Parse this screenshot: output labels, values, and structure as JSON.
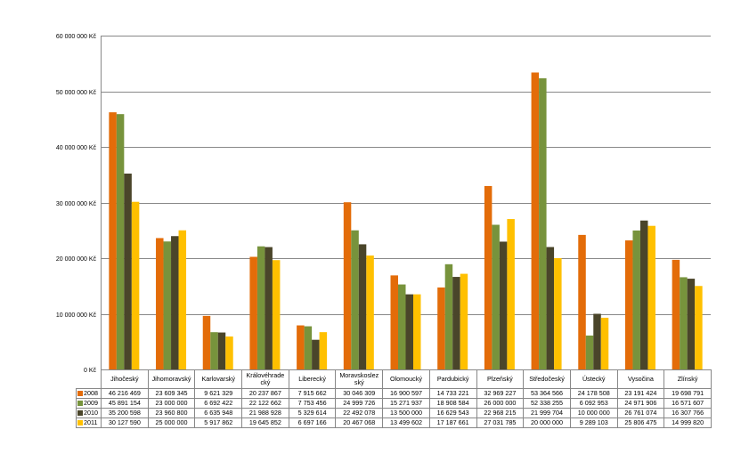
{
  "chart_data": {
    "type": "bar",
    "title": "",
    "xlabel": "",
    "ylabel": "",
    "ylim": [
      0,
      60000000
    ],
    "yticks": [
      {
        "value": 0,
        "label": "0 Kč"
      },
      {
        "value": 10000000,
        "label": "10 000 000 Kč"
      },
      {
        "value": 20000000,
        "label": "20 000 000 Kč"
      },
      {
        "value": 30000000,
        "label": "30 000 000 Kč"
      },
      {
        "value": 40000000,
        "label": "40 000 000 Kč"
      },
      {
        "value": 50000000,
        "label": "50 000 000 Kč"
      },
      {
        "value": 60000000,
        "label": "60 000 000 Kč"
      }
    ],
    "grid": true,
    "legend": "data-table",
    "categories": [
      "Jihočeský",
      "Jihomoravský",
      "Karlovarský",
      "Královéhradecký",
      "Liberecký",
      "Moravskoslezský",
      "Olomoucký",
      "Pardubický",
      "Plzeňský",
      "Středočeský",
      "Ústecký",
      "Vysočina",
      "Zlínský"
    ],
    "category_labels": [
      "Jihočeský",
      "Jihomoravský",
      "Karlovarský",
      "Královéhrade cký",
      "Liberecký",
      "Moravskoslez ský",
      "Olomoucký",
      "Pardubický",
      "Plzeňský",
      "Středočeský",
      "Ústecký",
      "Vysočina",
      "Zlínský"
    ],
    "series": [
      {
        "name": "2008",
        "color": "#E36C09",
        "values": [
          46216469,
          23609345,
          9621329,
          20237867,
          7915662,
          30046309,
          16900597,
          14733221,
          32969227,
          53364566,
          24178508,
          23191424,
          19698791
        ],
        "labels": [
          "46 216 469",
          "23 609 345",
          "9 621 329",
          "20 237 867",
          "7 915 662",
          "30 046 309",
          "16 900 597",
          "14 733 221",
          "32 969 227",
          "53 364 566",
          "24 178 508",
          "23 191 424",
          "19 698 791"
        ]
      },
      {
        "name": "2009",
        "color": "#77933C",
        "values": [
          45891154,
          23000000,
          6692422,
          22122662,
          7753456,
          24999726,
          15271937,
          18908584,
          26000000,
          52338255,
          6092953,
          24971906,
          16571607
        ],
        "labels": [
          "45 891 154",
          "23 000 000",
          "6 692 422",
          "22 122 662",
          "7 753 456",
          "24 999 726",
          "15 271 937",
          "18 908 584",
          "26 000 000",
          "52 338 255",
          "6 092 953",
          "24 971 906",
          "16 571 607"
        ]
      },
      {
        "name": "2010",
        "color": "#4A452A",
        "values": [
          35200598,
          23960800,
          6635948,
          21988928,
          5329614,
          22492078,
          13500000,
          16629543,
          22968215,
          21999704,
          10000000,
          26761074,
          16307766
        ],
        "labels": [
          "35 200 598",
          "23 960 800",
          "6 635 948",
          "21 988 928",
          "5 329 614",
          "22 492 078",
          "13 500 000",
          "16 629 543",
          "22 968 215",
          "21 999 704",
          "10 000 000",
          "26 761 074",
          "16 307 766"
        ]
      },
      {
        "name": "2011",
        "color": "#FFC000",
        "values": [
          30127590,
          25000000,
          5917862,
          19645852,
          6697166,
          20467068,
          13499602,
          17187661,
          27031785,
          20000000,
          9289103,
          25806475,
          14999820
        ],
        "labels": [
          "30 127 590",
          "25 000 000",
          "5 917 862",
          "19 645 852",
          "6 697 166",
          "20 467 068",
          "13 499 602",
          "17 187 661",
          "27 031 785",
          "20 000 000",
          "9 289 103",
          "25 806 475",
          "14 999 820"
        ]
      }
    ]
  }
}
